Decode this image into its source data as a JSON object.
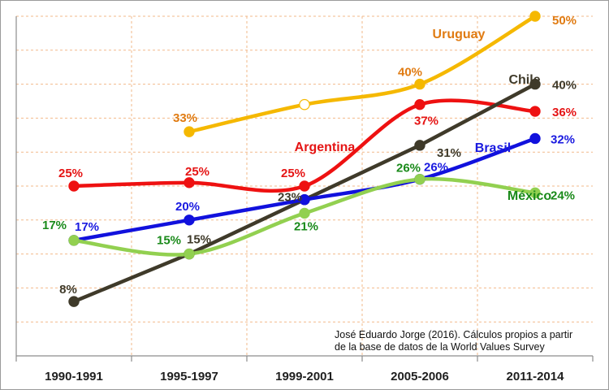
{
  "chart_data": {
    "type": "line",
    "categories": [
      "1990-1991",
      "1995-1997",
      "1999-2001",
      "2005-2006",
      "2011-2014"
    ],
    "ylim": [
      0,
      50
    ],
    "grid": true,
    "source_note": [
      "José Eduardo Jorge (2016). Cálculos propios a partir",
      "de la base de datos de la World Values Survey"
    ],
    "series": [
      {
        "name": "Uruguay",
        "color": "#f5b800",
        "label_color": "#e07b12",
        "values": [
          null,
          33,
          37,
          40,
          50
        ],
        "labels": [
          null,
          "33%",
          null,
          "40%",
          "50%"
        ],
        "hollow_index": 2
      },
      {
        "name": "Argentina",
        "color": "#ee1111",
        "label_color": "#e51414",
        "values": [
          25,
          25.5,
          25,
          37,
          36
        ],
        "labels": [
          "25%",
          "25%",
          "25%",
          "37%",
          "36%"
        ]
      },
      {
        "name": "Chile",
        "color": "#3f3a2a",
        "label_color": "#3f3a2a",
        "values": [
          8,
          15,
          23,
          31,
          40
        ],
        "labels": [
          "8%",
          "15%",
          "23%",
          "31%",
          "40%"
        ]
      },
      {
        "name": "Brasil",
        "color": "#1111dd",
        "label_color": "#1a1ae0",
        "values": [
          17,
          20,
          23,
          26,
          32
        ],
        "labels": [
          "17%",
          "20%",
          null,
          "26%",
          "32%"
        ]
      },
      {
        "name": "México",
        "color": "#92d050",
        "label_color": "#1a8a1a",
        "values": [
          17,
          15,
          21,
          26,
          24
        ],
        "labels": [
          "17%",
          "15%",
          "21%",
          "26%",
          "24%"
        ]
      }
    ]
  }
}
